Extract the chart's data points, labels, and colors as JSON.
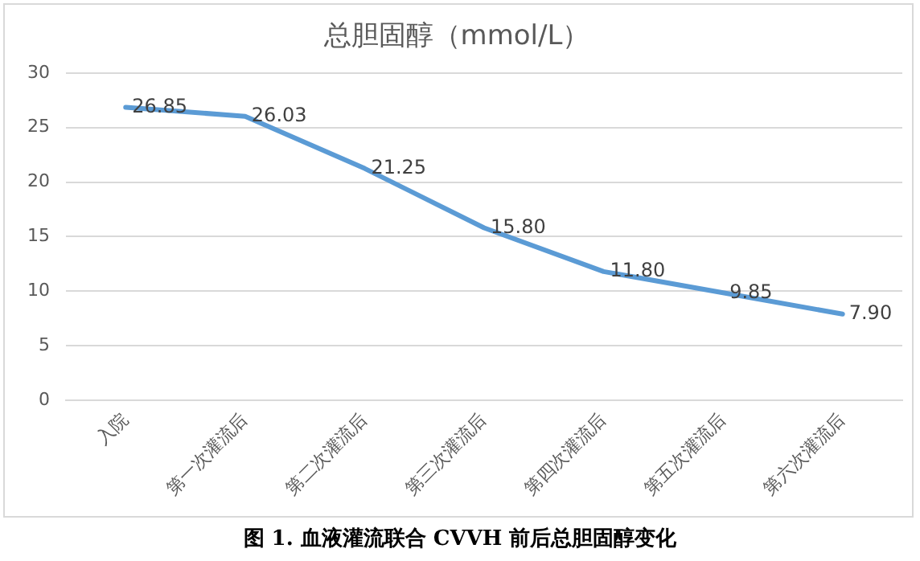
{
  "chart_data": {
    "type": "line",
    "title": "总胆固醇（mmol/L）",
    "categories": [
      "入院",
      "第一次灌流后",
      "第二次灌流后",
      "第三次灌流后",
      "第四次灌流后",
      "第五次灌流后",
      "第六次灌流后"
    ],
    "series": [
      {
        "color": "#5b9bd5",
        "values": [
          26.85,
          26.03,
          21.25,
          15.8,
          11.8,
          9.85,
          7.9
        ]
      }
    ],
    "value_labels": [
      "26.85",
      "26.03",
      "21.25",
      "15.80",
      "11.80",
      "9.85",
      "7.90"
    ],
    "ylim": [
      0,
      30
    ],
    "yticks": [
      0,
      5,
      10,
      15,
      20,
      25,
      30
    ],
    "grid": "y",
    "legend": false,
    "marker": "none",
    "annotations": [
      "图 1. 血液灌流联合 CVVH 前后总胆固醇变化"
    ]
  }
}
